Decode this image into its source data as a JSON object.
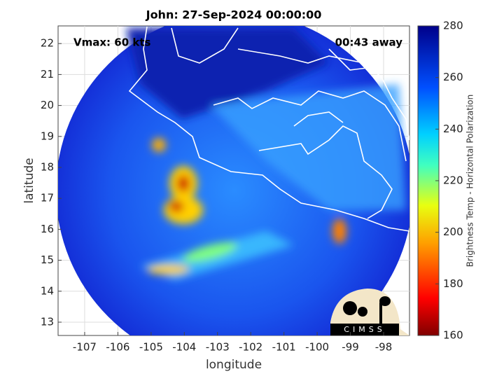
{
  "title": "John: 27-Sep-2024 00:00:00",
  "vmax_label": "Vmax: 60 kts",
  "time_label": "00:43 away",
  "logo": "CIMSS",
  "x_axis": {
    "label": "longitude",
    "lim": [
      -107.8,
      -97.22
    ],
    "ticks": [
      -107,
      -106,
      -105,
      -104,
      -103,
      -102,
      -101,
      -100,
      -99,
      -98
    ]
  },
  "y_axis": {
    "label": "latitude",
    "lim": [
      12.57,
      22.57
    ],
    "ticks": [
      13,
      14,
      15,
      16,
      17,
      18,
      19,
      20,
      21,
      22
    ]
  },
  "colorbar": {
    "label": "Brightness Temp - Horizontal Polarization",
    "lim": [
      160,
      280
    ],
    "ticks": [
      160,
      180,
      200,
      220,
      240,
      260,
      280
    ]
  }
}
